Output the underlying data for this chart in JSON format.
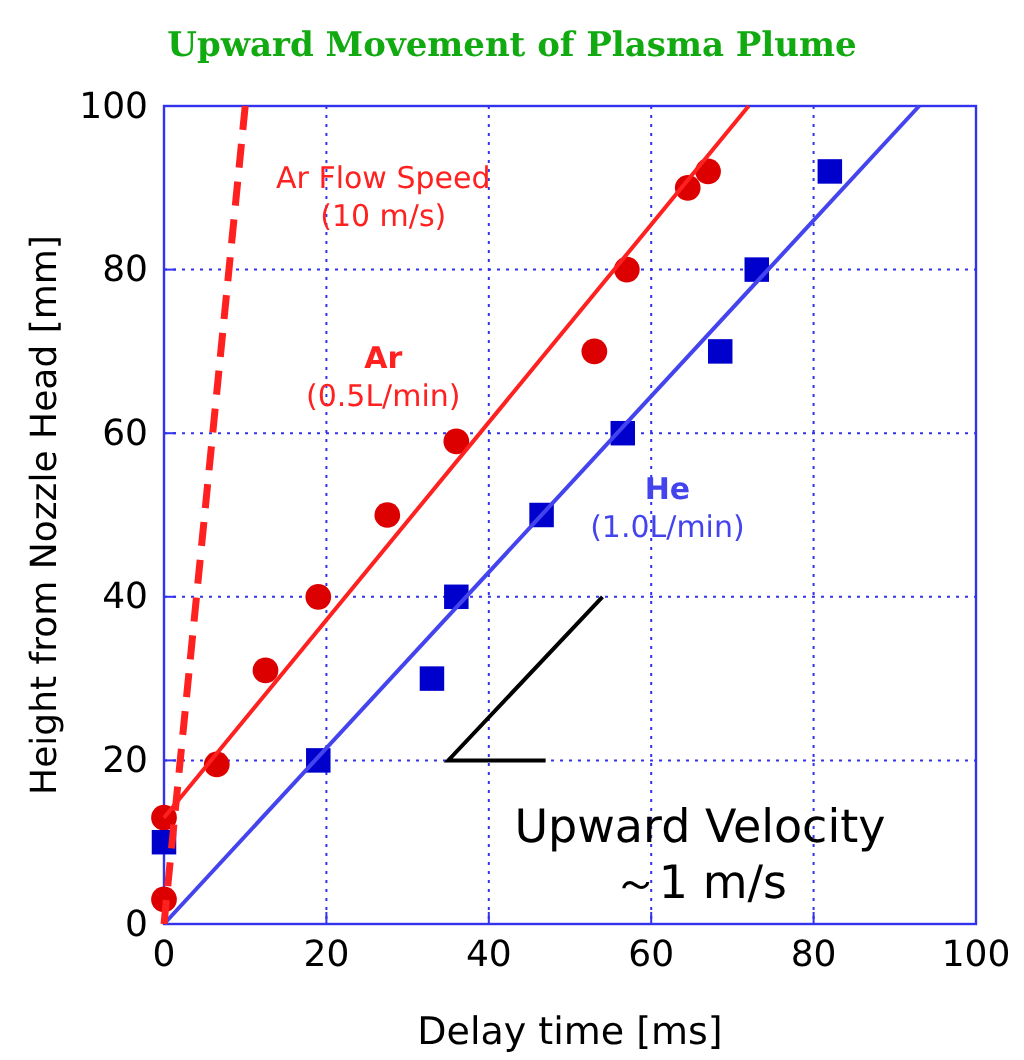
{
  "chart_data": {
    "type": "scatter",
    "title": "Upward Movement of Plasma Plume",
    "xlabel": "Delay time  [ms]",
    "ylabel": "Height from Nozzle Head  [mm]",
    "xlim": [
      0,
      100
    ],
    "ylim": [
      0,
      100
    ],
    "xticks": [
      0,
      20,
      40,
      60,
      80,
      100
    ],
    "yticks": [
      0,
      20,
      40,
      60,
      80,
      100
    ],
    "grid": true,
    "series": [
      {
        "color": "#dd0000",
        "marker": "circle",
        "x": [
          0,
          0,
          6.5,
          12.5,
          19,
          27.5,
          36,
          53,
          57,
          64.5,
          67
        ],
        "values": [
          3,
          13,
          19.5,
          31,
          40,
          50,
          59,
          70,
          80,
          90,
          92
        ]
      },
      {
        "color": "#0000cc",
        "marker": "square",
        "x": [
          0,
          19,
          33,
          36,
          46.5,
          56.5,
          68.5,
          73,
          82
        ],
        "values": [
          10,
          20,
          30,
          40,
          50,
          60,
          70,
          80,
          92
        ]
      },
      {
        "type": "line",
        "name": "Ar\n(0.5L/min)",
        "color": "#ff2020",
        "line_style": "solid",
        "x": [
          0,
          72
        ],
        "values": [
          13,
          100
        ]
      },
      {
        "type": "line",
        "name": "He\n(1.0L/min)",
        "color": "#4444ee",
        "line_style": "solid",
        "x": [
          0,
          93
        ],
        "values": [
          0,
          100
        ]
      },
      {
        "type": "line",
        "name": "Ar Flow Speed\n(10 m/s)",
        "color": "#ff2020",
        "line_style": "dashed",
        "x": [
          0,
          10
        ],
        "values": [
          0,
          100
        ]
      }
    ],
    "annotations": [
      "Upward Velocity\n～1 m/s"
    ]
  }
}
